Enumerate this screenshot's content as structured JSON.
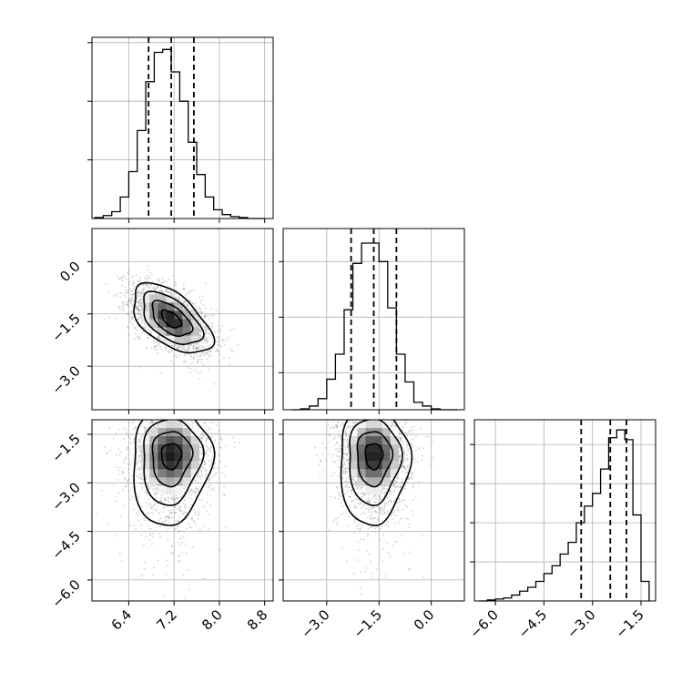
{
  "chart_data": {
    "type": "corner",
    "n_params": 3,
    "grid": true,
    "params": [
      {
        "name": "",
        "mean": 7.15,
        "sd": 0.35,
        "range": [
          5.75,
          8.95
        ],
        "ticks": [
          6.4,
          7.2,
          8.0,
          8.8
        ],
        "tick_labels": [
          "6.4",
          "7.2",
          "8.0",
          "8.8"
        ],
        "quantiles": [
          6.75,
          7.15,
          7.55
        ]
      },
      {
        "name": "",
        "mean": -1.65,
        "sd": 0.5,
        "range": [
          -4.25,
          0.95
        ],
        "ticks": [
          -3.0,
          -1.5,
          0.0
        ],
        "tick_labels": [
          "−3.0",
          "−1.5",
          "0.0"
        ],
        "quantiles": [
          -2.3,
          -1.65,
          -1.0
        ]
      },
      {
        "name": "",
        "mean": -2.15,
        "sd": 0.75,
        "range": [
          -6.65,
          -1.05
        ],
        "ticks": [
          -6.0,
          -4.5,
          -3.0,
          -1.5
        ],
        "tick_labels": [
          "−6.0",
          "−4.5",
          "−3.0",
          "−1.5"
        ],
        "quantiles": [
          -3.35,
          -2.45,
          -1.95
        ]
      }
    ],
    "histograms": [
      {
        "param": 0,
        "bins": [
          5.8,
          5.95,
          6.1,
          6.25,
          6.4,
          6.55,
          6.7,
          6.85,
          7.0,
          7.15,
          7.3,
          7.45,
          7.6,
          7.75,
          7.9,
          8.05,
          8.2,
          8.35,
          8.5,
          8.65,
          8.8
        ],
        "counts": [
          1,
          3,
          7,
          22,
          48,
          90,
          140,
          170,
          173,
          150,
          120,
          78,
          45,
          22,
          9,
          4,
          2,
          1,
          0,
          0
        ]
      },
      {
        "param": 1,
        "bins": [
          -4.0,
          -3.75,
          -3.5,
          -3.25,
          -3.0,
          -2.75,
          -2.5,
          -2.25,
          -2.0,
          -1.75,
          -1.5,
          -1.25,
          -1.0,
          -0.75,
          -0.5,
          -0.25,
          0.0,
          0.25,
          0.5,
          0.75
        ],
        "counts": [
          0,
          1,
          4,
          12,
          33,
          60,
          108,
          158,
          180,
          180,
          160,
          110,
          60,
          30,
          8,
          4,
          1,
          0,
          0
        ]
      },
      {
        "param": 2,
        "bins": [
          -6.5,
          -6.25,
          -6.0,
          -5.75,
          -5.5,
          -5.25,
          -5.0,
          -4.75,
          -4.5,
          -4.25,
          -4.0,
          -3.75,
          -3.5,
          -3.25,
          -3.0,
          -2.75,
          -2.5,
          -2.25,
          -2.0,
          -1.75,
          -1.5,
          -1.25
        ],
        "counts": [
          0,
          1,
          2,
          3,
          6,
          10,
          14,
          20,
          28,
          36,
          48,
          60,
          80,
          97,
          110,
          135,
          167,
          175,
          165,
          88,
          20
        ]
      }
    ],
    "scatter_2d": [
      {
        "x_param": 0,
        "y_param": 1,
        "correlation": -0.55,
        "levels_sigma": [
          0.5,
          1.0,
          1.5,
          2.0
        ]
      },
      {
        "x_param": 0,
        "y_param": 2,
        "correlation": 0.05,
        "levels_sigma": [
          0.5,
          1.0,
          1.5,
          2.0
        ]
      },
      {
        "x_param": 1,
        "y_param": 2,
        "correlation": 0.0,
        "levels_sigma": [
          0.5,
          1.0,
          1.5,
          2.0
        ]
      }
    ],
    "diag_y_ticks": [
      [
        60,
        120,
        180
      ],
      [
        40,
        100,
        160
      ],
      [
        40,
        80,
        120,
        160
      ]
    ],
    "diag_y_max": [
      180,
      190,
      180
    ],
    "n_samples": 6000
  }
}
